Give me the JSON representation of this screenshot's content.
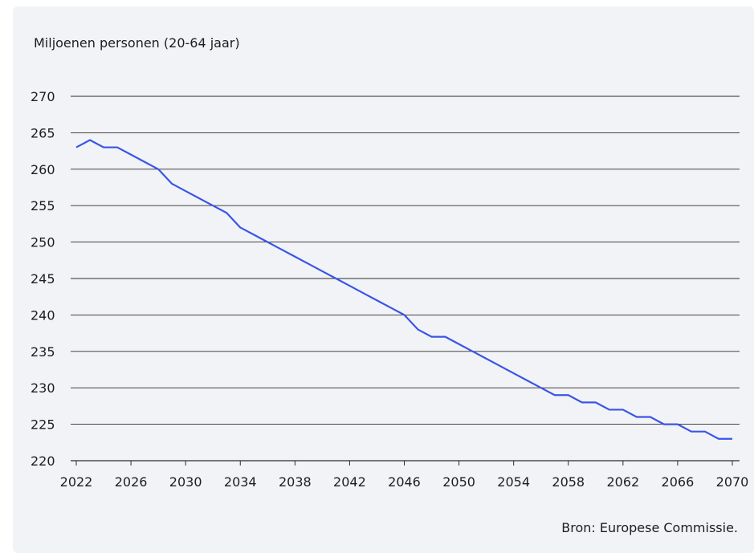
{
  "source": "Bron: Europese Commissie.",
  "colors": {
    "line": "#3a55e6",
    "grid": "#2b2b2b",
    "background": "#f2f3f6"
  },
  "chart_data": {
    "type": "line",
    "title": "",
    "ylabel": "Miljoenen personen (20-64 jaar)",
    "xlabel": "",
    "xlim": [
      2022,
      2070
    ],
    "ylim": [
      220,
      270
    ],
    "yticks": [
      220,
      225,
      230,
      235,
      240,
      245,
      250,
      255,
      260,
      265,
      270
    ],
    "xticks": [
      2022,
      2026,
      2030,
      2034,
      2038,
      2042,
      2046,
      2050,
      2054,
      2058,
      2062,
      2066,
      2070
    ],
    "grid": true,
    "legend": "none",
    "series": [
      {
        "x": [
          2022,
          2023,
          2024,
          2025,
          2026,
          2027,
          2028,
          2029,
          2030,
          2031,
          2032,
          2033,
          2034,
          2035,
          2036,
          2037,
          2038,
          2039,
          2040,
          2041,
          2042,
          2043,
          2044,
          2045,
          2046,
          2047,
          2048,
          2049,
          2050,
          2051,
          2052,
          2053,
          2054,
          2055,
          2056,
          2057,
          2058,
          2059,
          2060,
          2061,
          2062,
          2063,
          2064,
          2065,
          2066,
          2067,
          2068,
          2069,
          2070
        ],
        "values": [
          263,
          264,
          263,
          263,
          262,
          261,
          260,
          258,
          257,
          256,
          255,
          254,
          252,
          251,
          250,
          249,
          248,
          247,
          246,
          245,
          244,
          243,
          242,
          241,
          240,
          238,
          237,
          237,
          236,
          235,
          234,
          233,
          232,
          231,
          230,
          229,
          229,
          228,
          228,
          227,
          227,
          226,
          226,
          225,
          225,
          224,
          224,
          223,
          223
        ]
      }
    ]
  }
}
